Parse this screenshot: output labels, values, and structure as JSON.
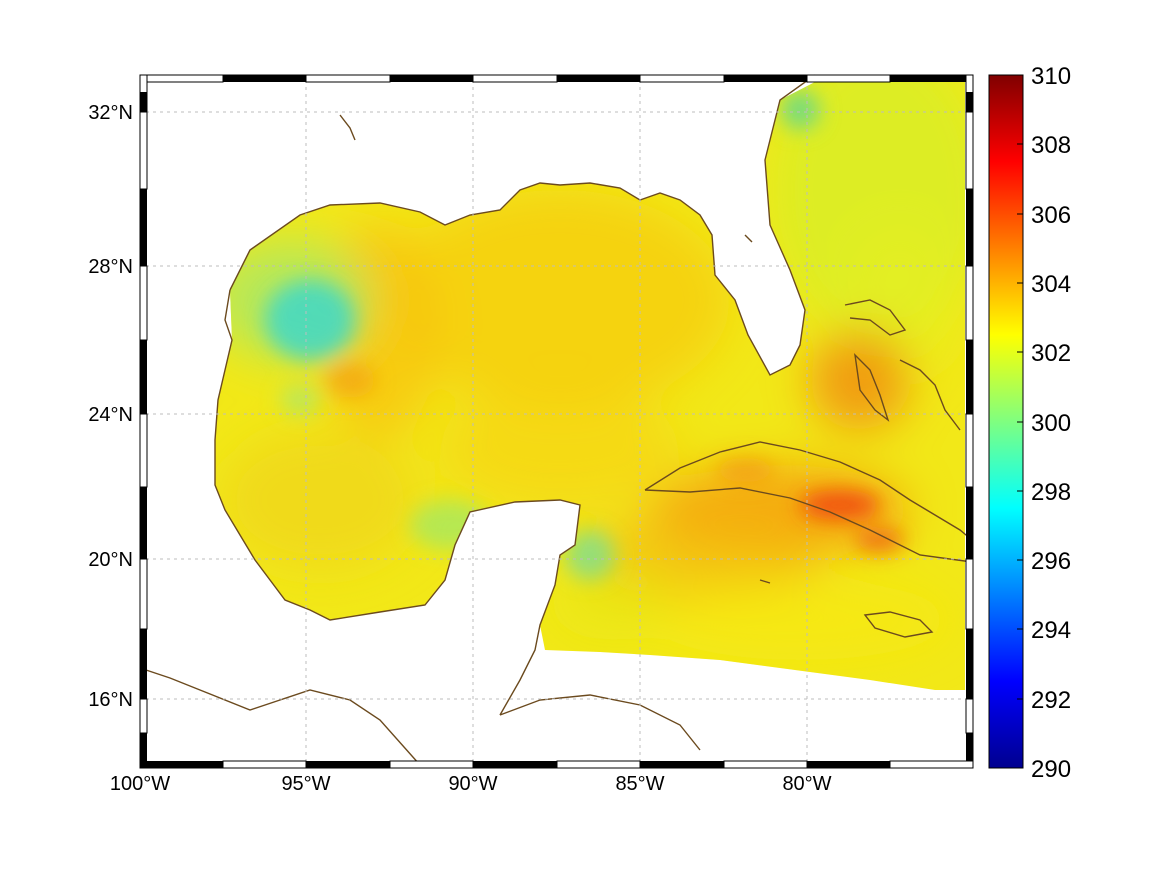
{
  "map": {
    "lon_labels": [
      "100°W",
      "95°W",
      "90°W",
      "85°W",
      "80°W"
    ],
    "lat_labels": [
      "32°N",
      "28°N",
      "24°N",
      "20°N",
      "16°N"
    ],
    "coastline_color": "#6b4a1e",
    "grid": true
  },
  "colorbar": {
    "colormap": "jet",
    "ticks": [
      "310",
      "308",
      "306",
      "304",
      "302",
      "300",
      "298",
      "296",
      "294",
      "292",
      "290"
    ],
    "min": 290,
    "max": 310
  }
}
